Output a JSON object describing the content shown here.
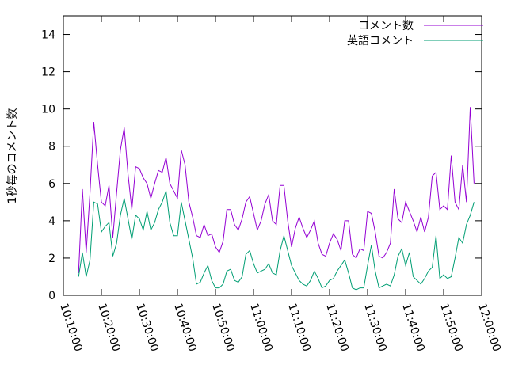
{
  "chart_data": {
    "type": "line",
    "ylabel": "1秒毎のコメント数",
    "xlim": [
      "10:10:00",
      "12:00:00"
    ],
    "xticks": [
      "10:10:00",
      "10:20:00",
      "10:30:00",
      "10:40:00",
      "10:50:00",
      "11:00:00",
      "11:10:00",
      "11:20:00",
      "11:30:00",
      "11:40:00",
      "11:50:00",
      "12:00:00"
    ],
    "ylim": [
      0,
      15
    ],
    "yticks": [
      0,
      2,
      4,
      6,
      8,
      10,
      12,
      14
    ],
    "legend": "top-right",
    "x": [
      "10:14:00",
      "10:15:00",
      "10:16:00",
      "10:17:00",
      "10:18:00",
      "10:19:00",
      "10:20:00",
      "10:21:00",
      "10:22:00",
      "10:23:00",
      "10:24:00",
      "10:25:00",
      "10:26:00",
      "10:27:00",
      "10:28:00",
      "10:29:00",
      "10:30:00",
      "10:31:00",
      "10:32:00",
      "10:33:00",
      "10:34:00",
      "10:35:00",
      "10:36:00",
      "10:37:00",
      "10:38:00",
      "10:39:00",
      "10:40:00",
      "10:41:00",
      "10:42:00",
      "10:43:00",
      "10:44:00",
      "10:45:00",
      "10:46:00",
      "10:47:00",
      "10:48:00",
      "10:49:00",
      "10:50:00",
      "10:51:00",
      "10:52:00",
      "10:53:00",
      "10:54:00",
      "10:55:00",
      "10:56:00",
      "10:57:00",
      "10:58:00",
      "10:59:00",
      "11:00:00",
      "11:01:00",
      "11:02:00",
      "11:03:00",
      "11:04:00",
      "11:05:00",
      "11:06:00",
      "11:07:00",
      "11:08:00",
      "11:09:00",
      "11:10:00",
      "11:11:00",
      "11:12:00",
      "11:13:00",
      "11:14:00",
      "11:15:00",
      "11:16:00",
      "11:17:00",
      "11:18:00",
      "11:19:00",
      "11:20:00",
      "11:21:00",
      "11:22:00",
      "11:23:00",
      "11:24:00",
      "11:25:00",
      "11:26:00",
      "11:27:00",
      "11:28:00",
      "11:29:00",
      "11:30:00",
      "11:31:00",
      "11:32:00",
      "11:33:00",
      "11:34:00",
      "11:35:00",
      "11:36:00",
      "11:37:00",
      "11:38:00",
      "11:39:00",
      "11:40:00",
      "11:41:00",
      "11:42:00",
      "11:43:00",
      "11:44:00",
      "11:45:00",
      "11:46:00",
      "11:47:00",
      "11:48:00",
      "11:49:00",
      "11:50:00",
      "11:51:00",
      "11:52:00",
      "11:53:00",
      "11:54:00",
      "11:55:00",
      "11:56:00",
      "11:57:00",
      "11:58:00"
    ],
    "series": [
      {
        "name": "コメント数",
        "color": "#9400d3",
        "values": [
          1.2,
          5.7,
          2.3,
          5.5,
          9.3,
          7.0,
          5.0,
          4.8,
          5.9,
          3.1,
          5.5,
          7.8,
          9.0,
          6.5,
          4.6,
          6.9,
          6.8,
          6.3,
          6.0,
          5.2,
          6.0,
          6.7,
          6.6,
          7.4,
          6.0,
          5.6,
          5.2,
          7.8,
          7.0,
          5.0,
          4.2,
          3.2,
          3.1,
          3.8,
          3.2,
          3.3,
          2.6,
          2.3,
          2.9,
          4.6,
          4.6,
          3.8,
          3.5,
          4.1,
          5.0,
          5.3,
          4.4,
          3.5,
          4.0,
          4.9,
          5.4,
          4.0,
          3.8,
          5.9,
          5.9,
          4.0,
          2.6,
          3.6,
          4.2,
          3.6,
          3.1,
          3.5,
          4.0,
          2.8,
          2.2,
          2.1,
          2.8,
          3.3,
          3.0,
          2.4,
          4.0,
          4.0,
          2.2,
          2.0,
          2.5,
          2.4,
          4.5,
          4.4,
          3.4,
          2.1,
          2.0,
          2.3,
          2.8,
          5.7,
          4.1,
          3.9,
          5.0,
          4.5,
          4.0,
          3.4,
          4.2,
          3.4,
          4.2,
          6.4,
          6.6,
          4.6,
          4.8,
          4.6,
          7.5,
          5.0,
          4.6,
          7.0,
          5.0,
          10.1,
          6.0
        ]
      },
      {
        "name": "英語コメント",
        "color": "#009e73",
        "values": [
          1.0,
          2.3,
          1.0,
          1.9,
          5.0,
          4.9,
          3.4,
          3.7,
          3.9,
          2.1,
          2.8,
          4.3,
          5.2,
          4.1,
          3.0,
          4.3,
          4.1,
          3.5,
          4.5,
          3.5,
          3.9,
          4.6,
          5.0,
          5.6,
          3.9,
          3.2,
          3.2,
          5.0,
          4.0,
          3.0,
          2.0,
          0.6,
          0.7,
          1.2,
          1.6,
          0.8,
          0.4,
          0.4,
          0.6,
          1.3,
          1.4,
          0.8,
          0.7,
          1.0,
          2.2,
          2.4,
          1.7,
          1.2,
          1.3,
          1.4,
          1.7,
          1.2,
          1.1,
          2.4,
          3.2,
          2.4,
          1.6,
          1.2,
          0.8,
          0.6,
          0.5,
          0.8,
          1.3,
          0.9,
          0.4,
          0.5,
          0.8,
          0.9,
          1.3,
          1.6,
          1.9,
          1.2,
          0.4,
          0.3,
          0.4,
          0.4,
          1.6,
          2.7,
          1.3,
          0.4,
          0.5,
          0.6,
          0.5,
          1.1,
          2.1,
          2.5,
          1.6,
          2.3,
          1.0,
          0.8,
          0.6,
          0.9,
          1.3,
          1.5,
          3.2,
          0.9,
          1.1,
          0.9,
          1.0,
          2.0,
          3.1,
          2.8,
          3.8,
          4.3,
          5.0
        ]
      }
    ]
  }
}
